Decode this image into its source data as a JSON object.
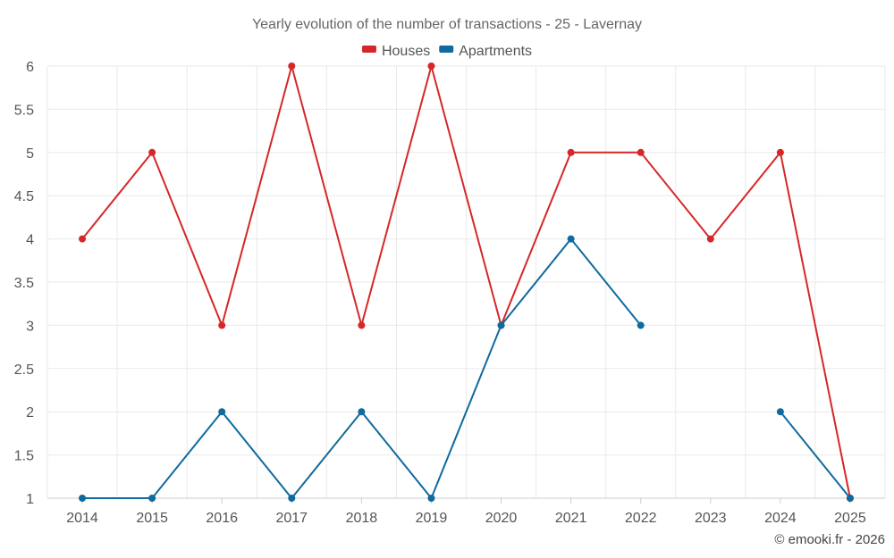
{
  "chart_data": {
    "type": "line",
    "title": "Yearly evolution of the number of transactions - 25 - Lavernay",
    "categories": [
      "2014",
      "2015",
      "2016",
      "2017",
      "2018",
      "2019",
      "2020",
      "2021",
      "2022",
      "2023",
      "2024",
      "2025"
    ],
    "series": [
      {
        "name": "Houses",
        "color": "#d62728",
        "values": [
          4,
          5,
          3,
          6,
          3,
          6,
          3,
          5,
          5,
          4,
          5,
          1
        ]
      },
      {
        "name": "Apartments",
        "color": "#0f6a9e",
        "values": [
          1,
          1,
          2,
          1,
          2,
          1,
          3,
          4,
          3,
          null,
          2,
          1
        ]
      }
    ],
    "ylim": [
      1,
      6
    ],
    "yticks": [
      "1",
      "1.5",
      "2",
      "2.5",
      "3",
      "3.5",
      "4",
      "4.5",
      "5",
      "5.5",
      "6"
    ],
    "xlabel": "",
    "ylabel": "",
    "grid": true,
    "legend": "top-center"
  },
  "credit": "© emooki.fr - 2026"
}
